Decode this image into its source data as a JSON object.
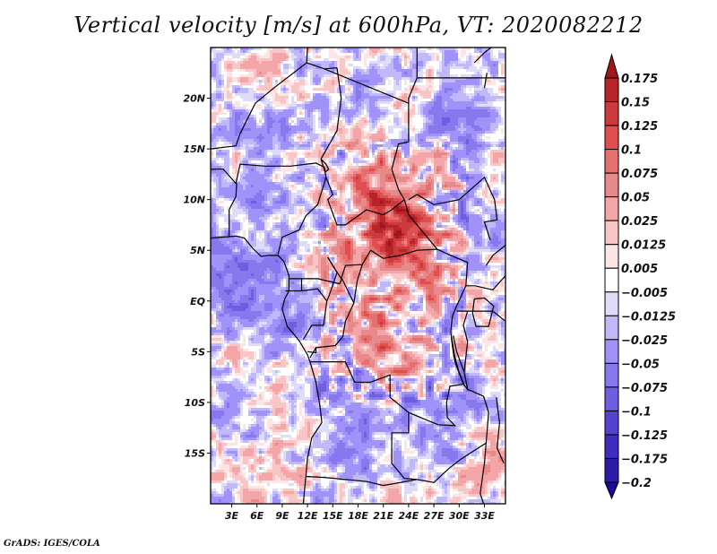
{
  "chart_data": {
    "type": "heatmap",
    "title": "Vertical velocity [m/s] at 600hPa, VT: 2020082212",
    "variable": "Vertical velocity",
    "units": "m/s",
    "level": "600hPa",
    "valid_time": "2020082212",
    "xlabel": "",
    "ylabel": "",
    "x_ticks": [
      "3E",
      "6E",
      "9E",
      "12E",
      "15E",
      "18E",
      "21E",
      "24E",
      "27E",
      "30E",
      "33E"
    ],
    "x_tick_values": [
      3,
      6,
      9,
      12,
      15,
      18,
      21,
      24,
      27,
      30,
      33
    ],
    "y_ticks": [
      "20N",
      "15N",
      "10N",
      "5N",
      "EQ",
      "5S",
      "10S",
      "15S"
    ],
    "y_tick_values": [
      20,
      15,
      10,
      5,
      0,
      -5,
      -10,
      -15
    ],
    "lon_range": [
      0.5,
      35.5
    ],
    "lat_range": [
      -20,
      25
    ],
    "grid": false,
    "legend_position": "right",
    "colorbar": {
      "levels": [
        -0.2,
        -0.175,
        -0.125,
        -0.1,
        -0.075,
        -0.05,
        -0.025,
        -0.0125,
        -0.005,
        0.005,
        0.0125,
        0.025,
        0.05,
        0.075,
        0.1,
        0.125,
        0.15,
        0.175
      ],
      "labels_top_to_bottom": [
        "0.175",
        "0.15",
        "0.125",
        "0.1",
        "0.075",
        "0.05",
        "0.025",
        "0.0125",
        "0.005",
        "−0.005",
        "−0.0125",
        "−0.025",
        "−0.05",
        "−0.075",
        "−0.1",
        "−0.125",
        "−0.175",
        "−0.2"
      ],
      "colors_top_to_bottom": [
        "#a0161c",
        "#b82528",
        "#cb3a3c",
        "#e04e50",
        "#e6706f",
        "#e68a8c",
        "#f4a5a7",
        "#f9c6c8",
        "#fde4e5",
        "#ffffff",
        "#dedcf8",
        "#c0b8f9",
        "#a192f9",
        "#8878ee",
        "#6e5fe0",
        "#5443cf",
        "#3f2dbd",
        "#2c1ca6",
        "#1e0a96"
      ],
      "extend": "both"
    },
    "description": "Spatial field of 600hPa vertical velocity over Central Africa (approx. 0.5E-35.5E, 20S-25N) with country borders; positive (red, ascent) maxima over Chad/CAR/South Sudan border and DRC basin, negative (blue) over Sahara, Gulf of Guinea and Atlantic."
  },
  "footer": "GrADS: IGES/COLA"
}
